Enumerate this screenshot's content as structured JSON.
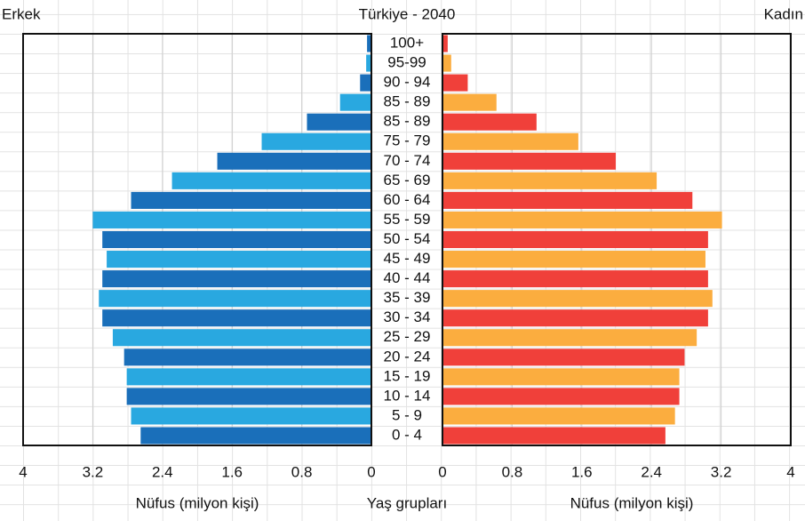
{
  "chart_data": {
    "type": "pyramid",
    "title": "Türkiye - 2040",
    "categories": [
      "100+",
      "95-99",
      "90 - 94",
      "85 - 89",
      "85 - 89",
      "75 - 79",
      "70 - 74",
      "65 - 69",
      "60 - 64",
      "55 - 59",
      "50 - 54",
      "45 - 49",
      "40 - 44",
      "35 - 39",
      "30 - 34",
      "25 - 29",
      "20 - 24",
      "15 - 19",
      "10 - 14",
      "5 - 9",
      "0 - 4"
    ],
    "series": [
      {
        "name": "Erkek",
        "colors": [
          "#1a6fba",
          "#29a8e0"
        ],
        "values": [
          0.05,
          0.06,
          0.13,
          0.36,
          0.74,
          1.26,
          1.77,
          2.29,
          2.76,
          3.2,
          3.09,
          3.04,
          3.09,
          3.13,
          3.09,
          2.97,
          2.84,
          2.81,
          2.81,
          2.76,
          2.65
        ]
      },
      {
        "name": "Kadın",
        "colors": [
          "#f0403a",
          "#fbad3f"
        ],
        "values": [
          0.06,
          0.1,
          0.29,
          0.62,
          1.08,
          1.56,
          1.99,
          2.46,
          2.87,
          3.21,
          3.05,
          3.02,
          3.05,
          3.1,
          3.05,
          2.92,
          2.78,
          2.72,
          2.72,
          2.67,
          2.56
        ]
      }
    ],
    "xlim": [
      0,
      4
    ],
    "xticks": [
      0,
      0.8,
      1.6,
      2.4,
      3.2,
      4
    ],
    "xlabel": "Nüfus (milyon kişi)",
    "category_label": "Yaş grupları"
  }
}
